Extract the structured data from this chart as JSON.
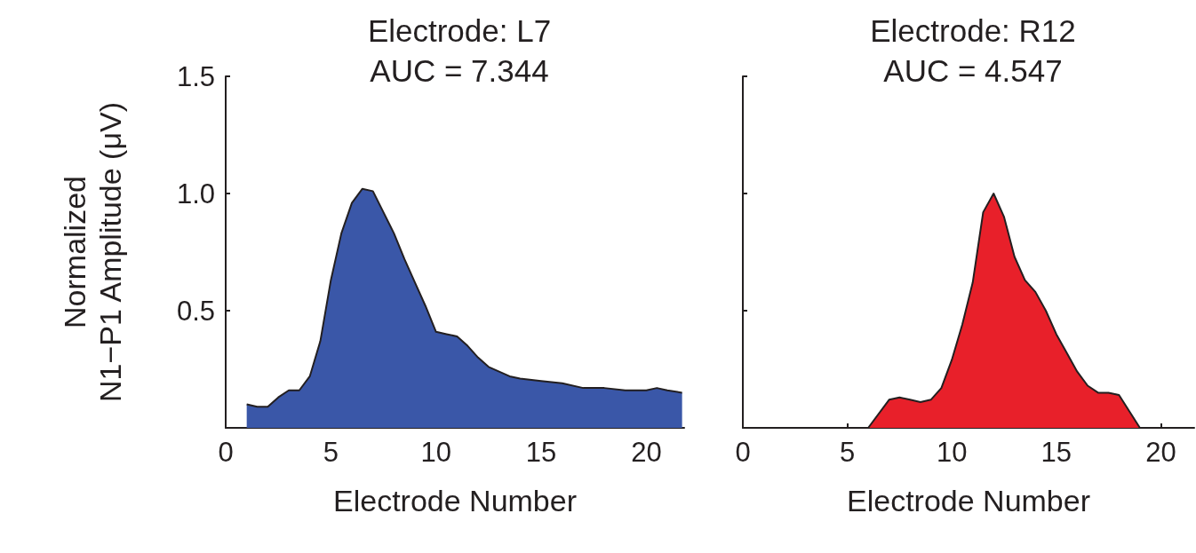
{
  "chart_data": [
    {
      "type": "area",
      "title": "Electrode: L7",
      "subtitle": "AUC = 7.344",
      "xlabel": "Electrode Number",
      "ylabel": "Normalized\nN1−P1 Amplitude (μV)",
      "xlim": [
        0,
        21.8
      ],
      "xticks": [
        0,
        5,
        10,
        15,
        20
      ],
      "ylim": [
        0,
        1.5
      ],
      "yticks": [
        0.5,
        {
          "value": 1,
          "label": "1.0"
        },
        1.5
      ],
      "x": [
        1,
        1.5,
        2,
        2.5,
        3,
        3.5,
        4,
        4.5,
        5,
        5.5,
        6,
        6.5,
        7,
        7.5,
        8,
        8.5,
        9,
        9.5,
        10,
        10.5,
        11,
        11.5,
        12,
        12.5,
        13,
        13.5,
        14,
        15,
        16,
        17,
        18,
        19,
        20,
        20.5,
        21,
        21.7
      ],
      "series": [
        {
          "color": "#3a57a8",
          "values": [
            0.1,
            0.09,
            0.09,
            0.13,
            0.16,
            0.16,
            0.22,
            0.37,
            0.63,
            0.83,
            0.96,
            1.02,
            1.01,
            0.92,
            0.83,
            0.72,
            0.62,
            0.52,
            0.41,
            0.4,
            0.39,
            0.35,
            0.3,
            0.26,
            0.24,
            0.22,
            0.21,
            0.2,
            0.19,
            0.17,
            0.17,
            0.16,
            0.16,
            0.17,
            0.16,
            0.15
          ]
        }
      ]
    },
    {
      "type": "area",
      "title": "Electrode: R12",
      "subtitle": "AUC = 4.547",
      "xlabel": "Electrode Number",
      "xlim": [
        0,
        21.6
      ],
      "xticks": [
        0,
        5,
        10,
        15,
        20
      ],
      "ylim": [
        0,
        1.5
      ],
      "yticks": [
        {
          "value": 0.5,
          "label": null
        },
        {
          "value": 1,
          "label": null
        },
        {
          "value": 1.5,
          "label": null
        }
      ],
      "tick_labels": "x",
      "x": [
        0,
        5,
        6,
        7,
        7.5,
        8,
        8.5,
        9,
        9.5,
        10,
        10.5,
        11,
        11.5,
        12,
        12.5,
        13,
        13.5,
        14,
        14.5,
        15,
        15.5,
        16,
        16.5,
        17,
        17.5,
        18,
        18.5,
        19,
        20,
        21.6
      ],
      "series": [
        {
          "color": "#e8202a",
          "values": [
            0,
            0,
            0,
            0.12,
            0.13,
            0.12,
            0.11,
            0.12,
            0.17,
            0.29,
            0.44,
            0.62,
            0.92,
            1,
            0.9,
            0.73,
            0.63,
            0.58,
            0.5,
            0.4,
            0.32,
            0.24,
            0.18,
            0.15,
            0.15,
            0.14,
            0.07,
            0,
            0,
            0
          ]
        }
      ]
    }
  ]
}
